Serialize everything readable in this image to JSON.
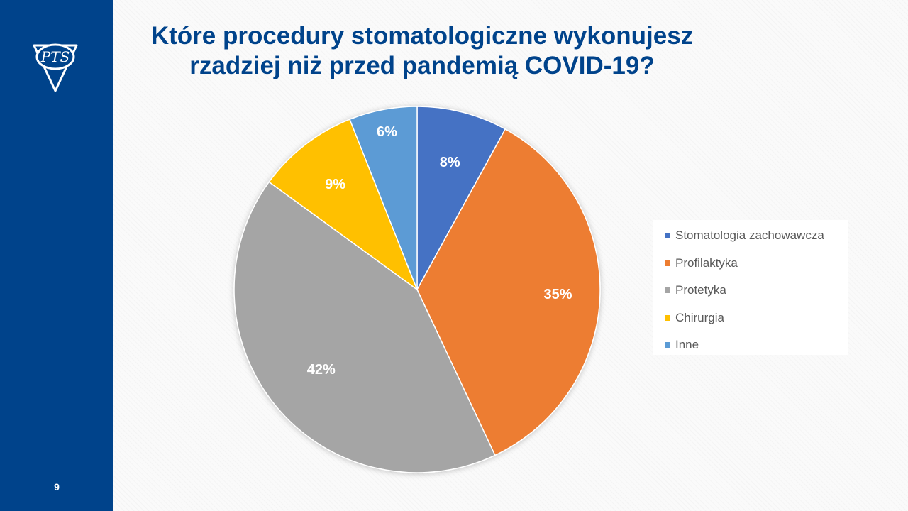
{
  "slide": {
    "page_number": "9",
    "title_lines": [
      "Które procedury stomatologiczne wykonujesz",
      "rzadziej niż przed pandemią COVID-19?"
    ],
    "logo_text": "PTS"
  },
  "colors": {
    "sidebar": "#00438b",
    "title": "#00438b",
    "slice_label": "#ffffff",
    "legend_text": "#595959"
  },
  "chart_data": {
    "type": "pie",
    "title": "Które procedury stomatologiczne wykonujesz rzadziej niż przed pandemią COVID-19?",
    "start_angle_deg": 0,
    "direction": "clockwise",
    "legend_position": "right",
    "categories": [
      "Stomatologia zachowawcza",
      "Profilaktyka",
      "Protetyka",
      "Chirurgia",
      "Inne"
    ],
    "values": [
      8,
      35,
      42,
      9,
      6
    ],
    "labels": [
      "8%",
      "35%",
      "42%",
      "9%",
      "6%"
    ],
    "colors": [
      "#4472c4",
      "#ed7d31",
      "#a5a5a5",
      "#ffc000",
      "#5b9bd5"
    ]
  }
}
